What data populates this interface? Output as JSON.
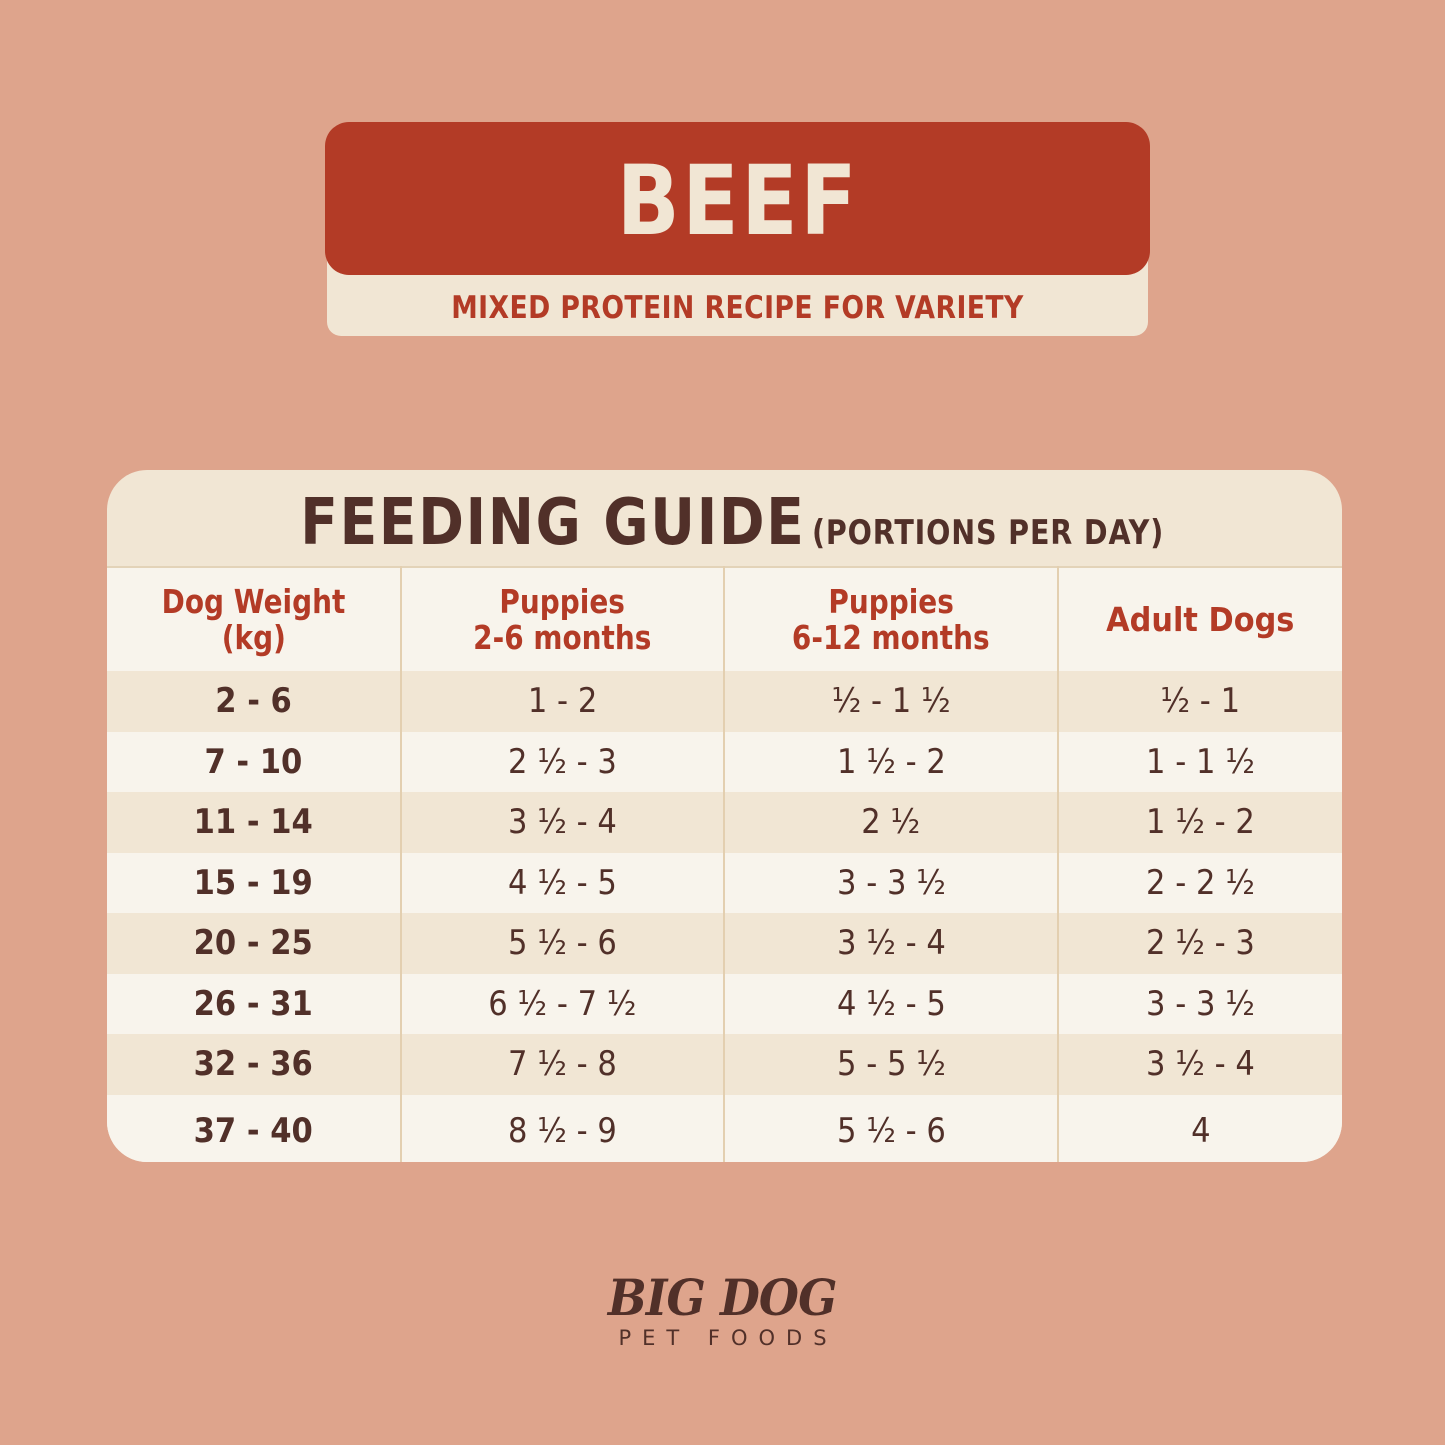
{
  "banner": {
    "title": "BEEF",
    "subtitle": "MIXED PROTEIN RECIPE FOR VARIETY"
  },
  "feeding_guide": {
    "title": "FEEDING GUIDE",
    "subtitle": "(PORTIONS PER DAY)",
    "columns": [
      {
        "line1": "Dog Weight",
        "line2": "(kg)"
      },
      {
        "line1": "Puppies",
        "line2": "2-6 months"
      },
      {
        "line1": "Puppies",
        "line2": "6-12 months"
      },
      {
        "line1": "Adult Dogs",
        "line2": ""
      }
    ],
    "rows": [
      [
        "2 - 6",
        "1 - 2",
        "½ - 1 ½",
        "½ - 1"
      ],
      [
        "7 - 10",
        "2 ½ - 3",
        "1 ½ - 2",
        "1 - 1 ½"
      ],
      [
        "11 - 14",
        "3 ½ - 4",
        "2 ½",
        "1 ½ - 2"
      ],
      [
        "15 - 19",
        "4 ½ - 5",
        "3 - 3 ½",
        "2 - 2 ½"
      ],
      [
        "20 - 25",
        "5 ½ - 6",
        "3 ½ - 4",
        "2 ½ - 3"
      ],
      [
        "26 - 31",
        "6 ½ - 7 ½",
        "4 ½ - 5",
        "3 - 3 ½"
      ],
      [
        "32 - 36",
        "7 ½ - 8",
        "5 - 5 ½",
        "3 ½ - 4"
      ],
      [
        "37 - 40",
        "8 ½ - 9",
        "5 ½ - 6",
        "4"
      ]
    ]
  },
  "brand": {
    "name": "BIG DOG",
    "tagline": "PET FOODS"
  },
  "colors": {
    "background": "#dea48c",
    "accent_red": "#b33b26",
    "cream": "#f1e6d4",
    "light_cream": "#f8f4ec",
    "dark_brown": "#513029"
  }
}
